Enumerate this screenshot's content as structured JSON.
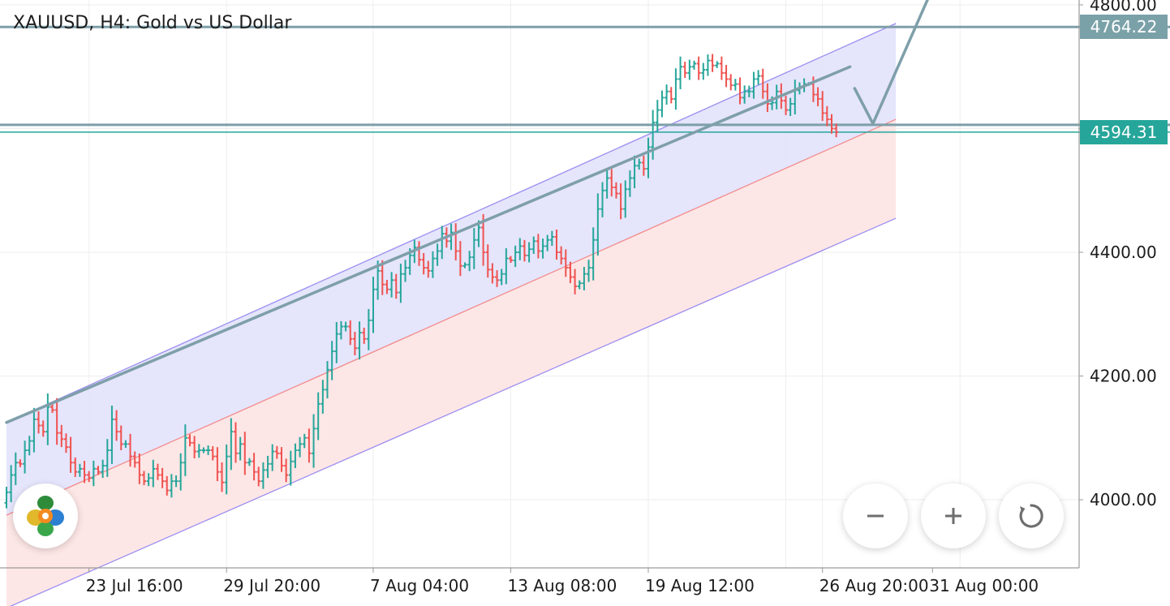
{
  "title": "XAUUSD, H4: Gold vs US Dollar",
  "colors": {
    "background": "#ffffff",
    "grid": "#eeeeee",
    "axis": "#9a9a9a",
    "bull_candle": "#26a69a",
    "bear_candle": "#ef5350",
    "channel_upper_fill": "#e1e1fc",
    "channel_lower_fill": "#fde3e3",
    "channel_edge": "#9b8ef0",
    "channel_mid": "#f28b8b",
    "trendline": "#7e9fa9",
    "price_line_current": "#26a69a",
    "price_label_level": "#7ba1a8",
    "price_label_current": "#26a69a"
  },
  "controls": {
    "zoom_out_icon": "minus-icon",
    "zoom_in_icon": "plus-icon",
    "reset_icon": "reset-icon",
    "logo_icon": "metatrader-logo-icon"
  },
  "chart_data": {
    "type": "candlestick",
    "title": "XAUUSD, H4: Gold vs US Dollar",
    "symbol": "XAUUSD",
    "timeframe": "H4",
    "ylim": [
      3885,
      4810
    ],
    "y_ticks": [
      4000,
      4200,
      4400,
      4600,
      4800
    ],
    "y_tick_labels": [
      "4000.00",
      "4200.00",
      "4400.00",
      "",
      "4800.00"
    ],
    "x_ticks": [
      {
        "label": "23 Jul 16:00",
        "bar": 18
      },
      {
        "label": "29 Jul 20:00",
        "bar": 48
      },
      {
        "label": "7 Aug 04:00",
        "bar": 80
      },
      {
        "label": "13 Aug 08:00",
        "bar": 110
      },
      {
        "label": "19 Aug 12:00",
        "bar": 140
      },
      {
        "label": "26 Aug 20:00",
        "bar": 178
      },
      {
        "label": "31 Aug 00:00",
        "bar": 202
      }
    ],
    "x_grid_bars": [
      18,
      48,
      80,
      110,
      140,
      170,
      178,
      208
    ],
    "price_labels": [
      {
        "text": "4764.22",
        "value": 4764.22,
        "style": "level"
      },
      {
        "text": "4594.31",
        "value": 4594.31,
        "style": "current"
      }
    ],
    "horizontal_lines": [
      {
        "value": 4764.22,
        "style": "level"
      },
      {
        "value": 4606,
        "style": "level"
      },
      {
        "value": 4594.31,
        "style": "current"
      }
    ],
    "channel": {
      "start_bar": 0,
      "end_bar": 194,
      "upper": [
        4125,
        4770
      ],
      "mid": [
        3975,
        4615
      ],
      "lower": [
        3825,
        4455
      ]
    },
    "trendlines": [
      {
        "points": [
          [
            0,
            4125
          ],
          [
            184,
            4700
          ]
        ]
      },
      {
        "points": [
          [
            185,
            4665
          ],
          [
            189,
            4608
          ],
          [
            201,
            4810
          ]
        ]
      }
    ],
    "candles": {
      "first_open": 3995,
      "closes": [
        4012,
        4040,
        4060,
        4058,
        4080,
        4095,
        4130,
        4120,
        4110,
        4150,
        4145,
        4108,
        4098,
        4085,
        4060,
        4045,
        4050,
        4040,
        4035,
        4050,
        4045,
        4055,
        4080,
        4130,
        4110,
        4090,
        4090,
        4070,
        4060,
        4040,
        4030,
        4035,
        4050,
        4040,
        4030,
        4015,
        4030,
        4030,
        4060,
        4100,
        4092,
        4078,
        4080,
        4080,
        4080,
        4070,
        4045,
        4028,
        4070,
        4110,
        4075,
        4090,
        4060,
        4062,
        4045,
        4030,
        4048,
        4058,
        4078,
        4075,
        4055,
        4040,
        4062,
        4080,
        4090,
        4100,
        4075,
        4115,
        4155,
        4178,
        4210,
        4240,
        4268,
        4280,
        4280,
        4260,
        4245,
        4270,
        4260,
        4290,
        4340,
        4370,
        4348,
        4340,
        4355,
        4335,
        4365,
        4375,
        4395,
        4408,
        4388,
        4375,
        4370,
        4390,
        4402,
        4430,
        4418,
        4432,
        4402,
        4378,
        4380,
        4392,
        4420,
        4440,
        4400,
        4372,
        4360,
        4355,
        4365,
        4390,
        4387,
        4400,
        4410,
        4395,
        4405,
        4418,
        4402,
        4410,
        4420,
        4425,
        4400,
        4390,
        4375,
        4360,
        4345,
        4350,
        4365,
        4375,
        4420,
        4470,
        4500,
        4520,
        4505,
        4495,
        4470,
        4502,
        4520,
        4540,
        4545,
        4535,
        4570,
        4610,
        4630,
        4650,
        4660,
        4648,
        4680,
        4700,
        4690,
        4700,
        4705,
        4690,
        4695,
        4710,
        4702,
        4705,
        4690,
        4680,
        4670,
        4672,
        4650,
        4660,
        4660,
        4680,
        4685,
        4660,
        4640,
        4642,
        4660,
        4645,
        4630,
        4640,
        4662,
        4668,
        4672,
        4672,
        4655,
        4648,
        4625,
        4615,
        4600,
        4594.31
      ]
    }
  }
}
